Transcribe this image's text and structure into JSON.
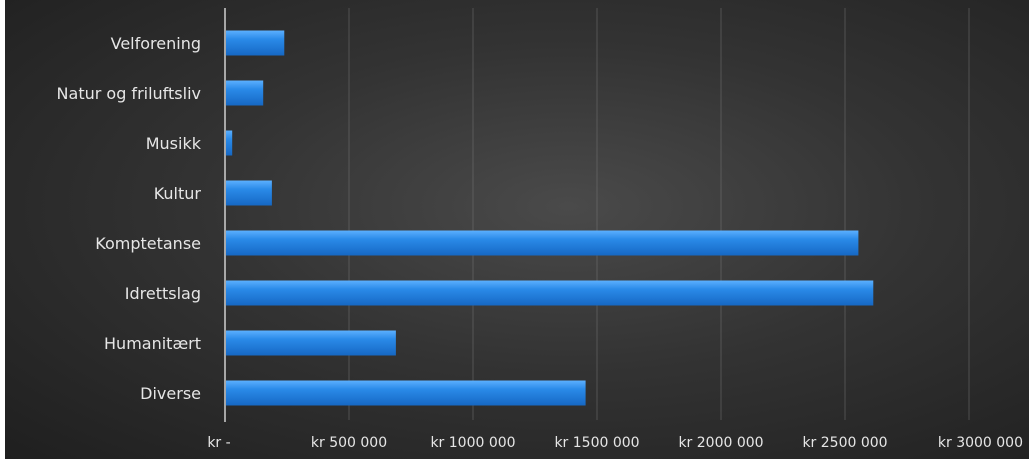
{
  "chart_data": {
    "type": "bar",
    "orientation": "horizontal",
    "categories": [
      "Velforening",
      "Natur og friluftsliv",
      "Musikk",
      "Kultur",
      "Komptetanse",
      "Idrettslag",
      "Humanitært",
      "Diverse"
    ],
    "values": [
      235000,
      150000,
      25000,
      185000,
      2550000,
      2610000,
      685000,
      1450000
    ],
    "xlim": [
      0,
      3000000
    ],
    "ticks": [
      0,
      500000,
      1000000,
      1500000,
      2000000,
      2500000,
      3000000
    ],
    "tick_labels": [
      "kr -",
      "kr 500 000",
      "kr 1000 000",
      "kr 1500 000",
      "kr 2000 000",
      "kr 2500 000",
      "kr 3000 000"
    ],
    "title": "",
    "xlabel": "",
    "ylabel": "",
    "grid": true,
    "legend": "none",
    "colors": {
      "bar": "#1f7fe0",
      "bar_highlight": "#4aa3ff",
      "background": "#333333",
      "text": "#e6e6e6",
      "grid": "#7a7a7a"
    }
  }
}
